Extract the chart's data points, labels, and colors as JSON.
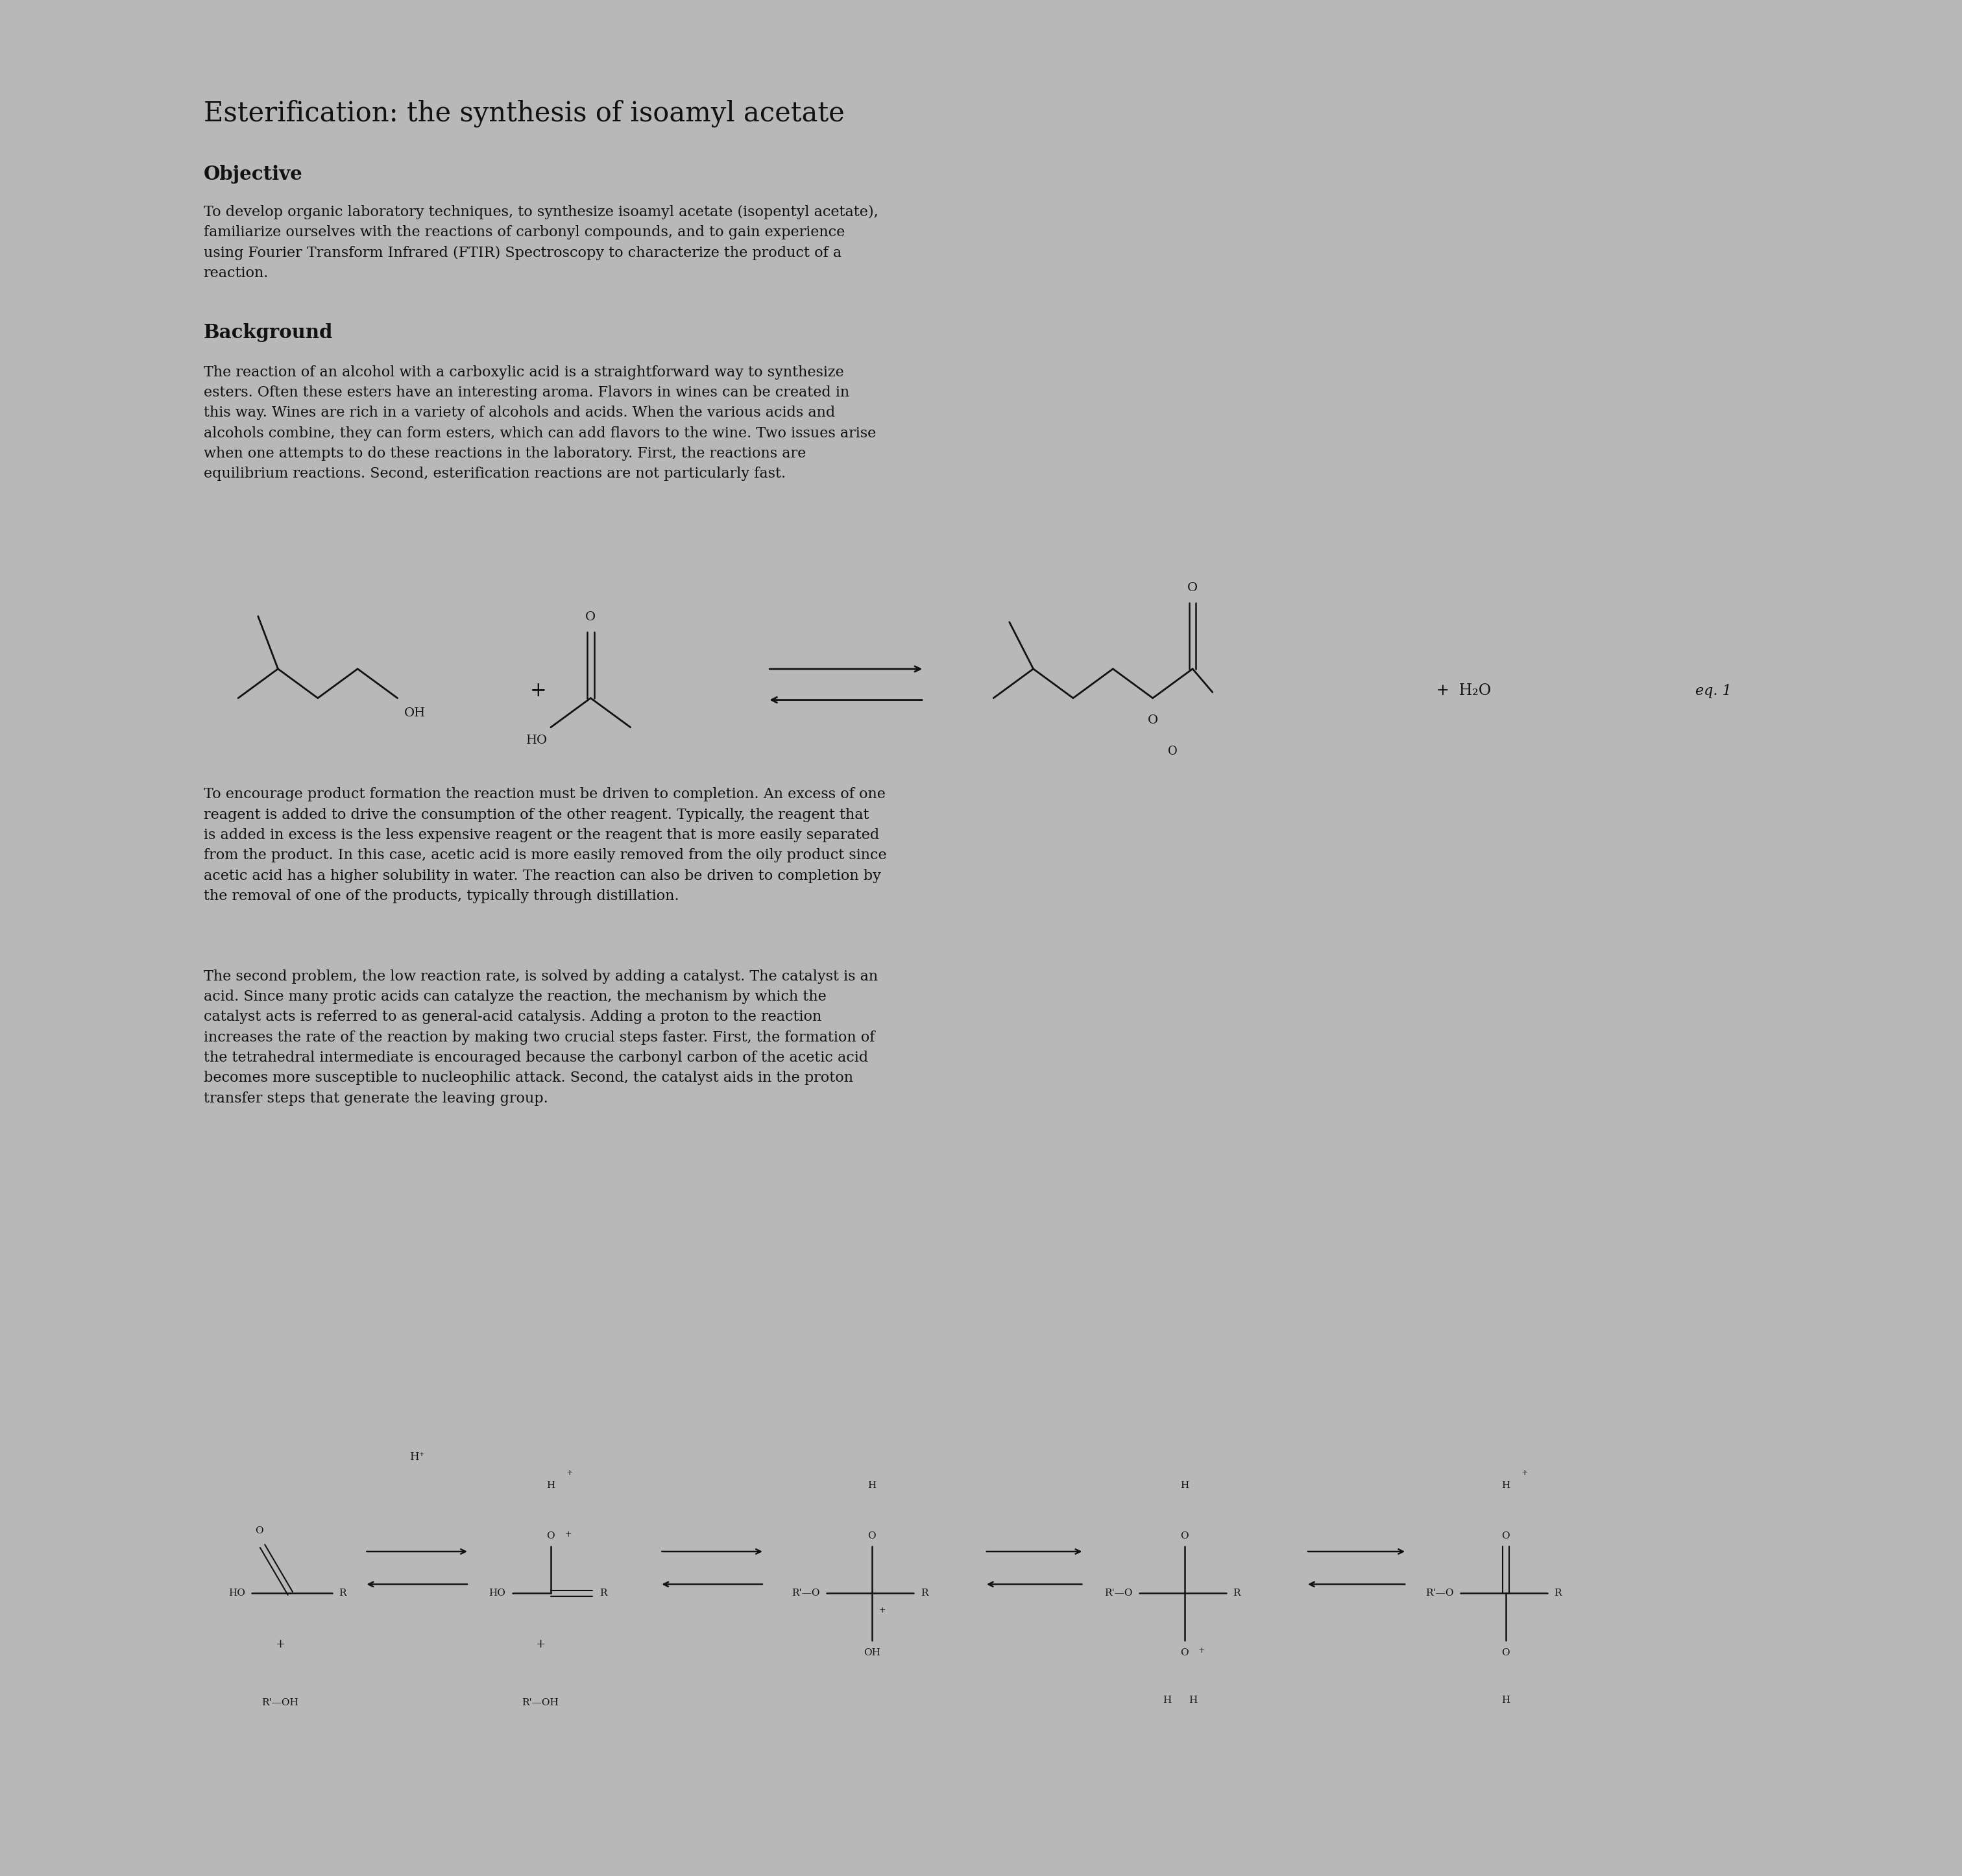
{
  "title": "Esterification: the synthesis of isoamyl acetate",
  "objective_header": "Objective",
  "objective_text": "To develop organic laboratory techniques, to synthesize isoamyl acetate (isopentyl acetate),\nfamiliarize ourselves with the reactions of carbonyl compounds, and to gain experience\nusing Fourier Transform Infrared (FTIR) Spectroscopy to characterize the product of a\nreaction.",
  "background_header": "Background",
  "background_text1": "The reaction of an alcohol with a carboxylic acid is a straightforward way to synthesize\nesters. Often these esters have an interesting aroma. Flavors in wines can be created in\nthis way. Wines are rich in a variety of alcohols and acids. When the various acids and\nalcohols combine, they can form esters, which can add flavors to the wine. Two issues arise\nwhen one attempts to do these reactions in the laboratory. First, the reactions are\nequilibrium reactions. Second, esterification reactions are not particularly fast.",
  "background_text2": "To encourage product formation the reaction must be driven to completion. An excess of one\nreagent is added to drive the consumption of the other reagent. Typically, the reagent that\nis added in excess is the less expensive reagent or the reagent that is more easily separated\nfrom the product. In this case, acetic acid is more easily removed from the oily product since\nacetic acid has a higher solubility in water. The reaction can also be driven to completion by\nthe removal of one of the products, typically through distillation.",
  "background_text3": "The second problem, the low reaction rate, is solved by adding a catalyst. The catalyst is an\nacid. Since many protic acids can catalyze the reaction, the mechanism by which the\ncatalyst acts is referred to as general-acid catalysis. Adding a proton to the reaction\nincreases the rate of the reaction by making two crucial steps faster. First, the formation of\nthe tetrahedral intermediate is encouraged because the carbonyl carbon of the acetic acid\nbecomes more susceptible to nucleophilic attack. Second, the catalyst aids in the proton\ntransfer steps that generate the leaving group.",
  "bg_color": "#b8b8b8",
  "page_color": "#d2d2ca",
  "text_color": "#111111",
  "title_size": 30,
  "header_size": 21,
  "body_size": 16
}
